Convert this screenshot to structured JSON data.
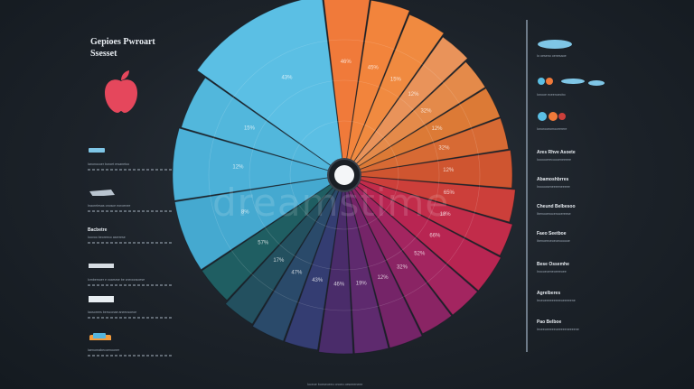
{
  "title": "Gepioes Pwroart\nSsesset",
  "watermark": "dreamstime",
  "left_legend": [
    {
      "head": "",
      "text": "Ianonocoer boroet ersanetoo"
    },
    {
      "head": "",
      "text": "Inaorelesas onosce eoroenee"
    },
    {
      "head": "Bacbetre",
      "text": "Ioovoo beoreeco aserrese"
    },
    {
      "head": "",
      "text": "Icmbemoer e voarsrse be cneooosoese"
    },
    {
      "head": "",
      "text": "Iaosorees bersconae aneecsoeoe"
    },
    {
      "head": "",
      "text": "Iaenoreabecoenooner"
    }
  ],
  "right_legend": [
    {
      "head": "",
      "text": "Io oeseno oenesaoe"
    },
    {
      "head": "",
      "text": "Ionooe eceenoecbo"
    },
    {
      "head": "",
      "text": "Ionorooeomoceerere"
    },
    {
      "head": "Ares Rhve Asoete",
      "text": "Ioooooerecoooeneeeee"
    },
    {
      "head": "Abamoshbrres",
      "text": "Inooooseneeeeneeeee"
    },
    {
      "head": "Cheund Belbesoo",
      "text": "Ibenooenocenocereese"
    },
    {
      "head": "Faeo Seetboe",
      "text": "Ibenoeeceoeoeoooooe"
    },
    {
      "head": "Bese Ossemhe",
      "text": "Inocoeoeneoeeeoee"
    },
    {
      "head": "Agrelberes",
      "text": "Ieceoeeeeeeeeeoeeeeene"
    },
    {
      "head": "Pao Belboe",
      "text": "Ieceeoeeeeeoeeeeeneeeene"
    }
  ],
  "footer": "Ioceoe boeseoeeo onoeo oeseeeneee",
  "chart_data": {
    "type": "pie",
    "title": "Gepioes Pwroart Ssesset",
    "slices": [
      {
        "label": "46%",
        "value": 4.0,
        "color": "#f07a3a"
      },
      {
        "label": "45%",
        "value": 3.5,
        "color": "#f2843c"
      },
      {
        "label": "15%",
        "value": 3.5,
        "color": "#f08a40"
      },
      {
        "label": "12%",
        "value": 3.0,
        "color": "#e9935a"
      },
      {
        "label": "32%",
        "value": 3.0,
        "color": "#e48a4a"
      },
      {
        "label": "12%",
        "value": 3.0,
        "color": "#dc7a36"
      },
      {
        "label": "32%",
        "value": 3.0,
        "color": "#d76a34"
      },
      {
        "label": "12%",
        "value": 3.5,
        "color": "#cf5530"
      },
      {
        "label": "65%",
        "value": 3.0,
        "color": "#cc3f3a"
      },
      {
        "label": "18%",
        "value": 3.0,
        "color": "#c22c4a"
      },
      {
        "label": "66%",
        "value": 3.5,
        "color": "#b82552"
      },
      {
        "label": "52%",
        "value": 3.0,
        "color": "#a32560"
      },
      {
        "label": "32%",
        "value": 3.0,
        "color": "#8a2464"
      },
      {
        "label": "12%",
        "value": 3.0,
        "color": "#752468"
      },
      {
        "label": "19%",
        "value": 3.0,
        "color": "#5e2a6e"
      },
      {
        "label": "46%",
        "value": 3.0,
        "color": "#4a2c6a"
      },
      {
        "label": "43%",
        "value": 3.0,
        "color": "#343d72"
      },
      {
        "label": "47%",
        "value": 3.0,
        "color": "#2a4a6a"
      },
      {
        "label": "17%",
        "value": 3.0,
        "color": "#23505f"
      },
      {
        "label": "57%",
        "value": 3.5,
        "color": "#1f5e62"
      },
      {
        "label": "8%",
        "value": 6.5,
        "color": "#45a9d0"
      },
      {
        "label": "12%",
        "value": 6.5,
        "color": "#4cb1d8"
      },
      {
        "label": "15%",
        "value": 5.0,
        "color": "#52b7dc"
      },
      {
        "label": "43%",
        "value": 12.5,
        "color": "#5bbfe4"
      }
    ]
  }
}
